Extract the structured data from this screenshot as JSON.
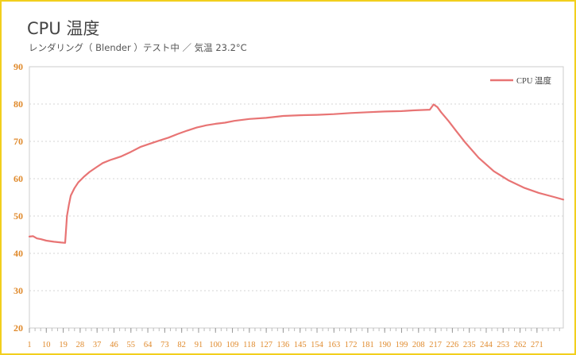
{
  "title": "CPU 温度",
  "subtitle": "レンダリング（ Blender ）テスト中 ／ 気温 23.2°C",
  "colors": {
    "line": "#e87474",
    "tick": "#e08a2c",
    "border": "#f2cf1d"
  },
  "chart_data": {
    "type": "line",
    "legend_position": "top-right",
    "grid": true,
    "xlim": [
      1,
      285
    ],
    "ylim": [
      20,
      90
    ],
    "yticks": [
      20,
      30,
      40,
      50,
      60,
      70,
      80,
      90
    ],
    "xticks": [
      1,
      10,
      19,
      28,
      37,
      46,
      55,
      64,
      73,
      82,
      91,
      100,
      109,
      118,
      127,
      136,
      145,
      154,
      163,
      172,
      181,
      190,
      199,
      208,
      217,
      226,
      235,
      244,
      253,
      262,
      271
    ],
    "series": [
      {
        "name": "CPU 温度",
        "x": [
          1,
          3,
          5,
          7,
          10,
          14,
          18,
          20,
          21,
          22,
          23,
          25,
          27,
          30,
          33,
          37,
          40,
          44,
          47,
          50,
          55,
          60,
          64,
          70,
          75,
          80,
          85,
          90,
          95,
          100,
          105,
          110,
          118,
          127,
          136,
          145,
          154,
          163,
          172,
          181,
          190,
          199,
          205,
          210,
          214,
          216,
          218,
          220,
          224,
          228,
          233,
          240,
          248,
          256,
          264,
          272,
          280,
          285
        ],
        "values": [
          44.5,
          44.6,
          44.0,
          43.8,
          43.4,
          43.1,
          42.9,
          42.8,
          50.0,
          53.0,
          55.5,
          57.5,
          59.0,
          60.5,
          61.8,
          63.2,
          64.2,
          65.0,
          65.5,
          66.0,
          67.2,
          68.5,
          69.2,
          70.2,
          71.0,
          72.0,
          72.9,
          73.7,
          74.3,
          74.7,
          75.0,
          75.5,
          76.0,
          76.3,
          76.8,
          77.0,
          77.1,
          77.3,
          77.6,
          77.8,
          78.0,
          78.1,
          78.3,
          78.4,
          78.5,
          79.9,
          79.2,
          77.8,
          75.4,
          72.8,
          69.6,
          65.6,
          62.0,
          59.5,
          57.6,
          56.2,
          55.1,
          54.4
        ]
      }
    ]
  }
}
